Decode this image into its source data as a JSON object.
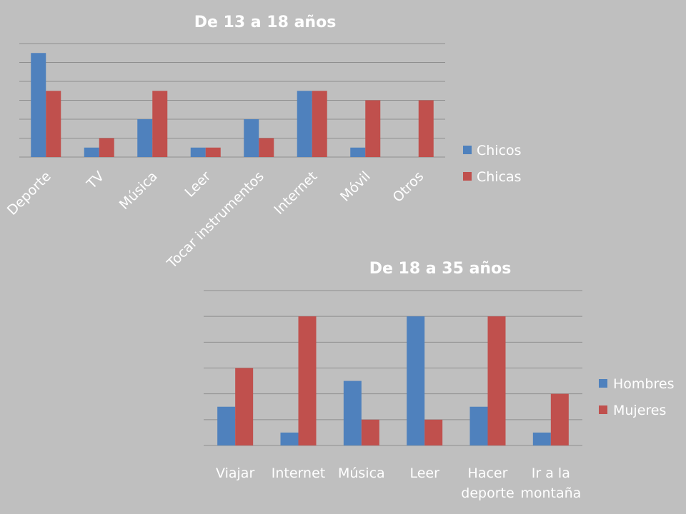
{
  "chart_data": [
    {
      "type": "bar",
      "title": "De 13 a 18 años",
      "categories": [
        "Deporte",
        "TV",
        "Música",
        "Leer",
        "Tocar instrumentos",
        "Internet",
        "Móvil",
        "Otros"
      ],
      "series": [
        {
          "name": "Chicos",
          "color": "#4f81bd",
          "values": [
            11,
            1,
            4,
            1,
            4,
            7,
            1,
            0
          ]
        },
        {
          "name": "Chicas",
          "color": "#c0504d",
          "values": [
            7,
            2,
            7,
            1,
            2,
            7,
            6,
            6
          ]
        }
      ],
      "ylim": [
        0,
        12
      ],
      "grid": true,
      "legend": "right"
    },
    {
      "type": "bar",
      "title": "De 18 a 35 años",
      "categories": [
        "Viajar",
        "Internet",
        "Música",
        "Leer",
        "Hacer deporte",
        "Ir a la montaña"
      ],
      "series": [
        {
          "name": "Hombres",
          "color": "#4f81bd",
          "values": [
            3,
            1,
            5,
            10,
            3,
            1
          ]
        },
        {
          "name": "Mujeres",
          "color": "#c0504d",
          "values": [
            6,
            10,
            2,
            2,
            10,
            4
          ]
        }
      ],
      "ylim": [
        0,
        12
      ],
      "grid": true,
      "legend": "right"
    }
  ]
}
